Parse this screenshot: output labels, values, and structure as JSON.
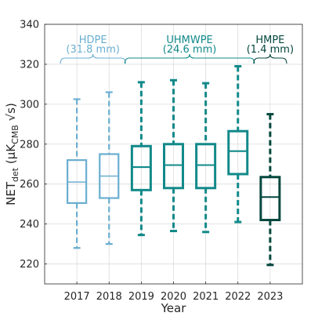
{
  "chart_data": {
    "type": "box",
    "xlabel": "Year",
    "ylabel": {
      "main": "NET",
      "sub1": "det",
      "paren_open": " (",
      "mu": "μK",
      "sub2": "CMB",
      "tail": " √s)"
    },
    "ylim": [
      210,
      340
    ],
    "yticks": [
      220,
      240,
      260,
      280,
      300,
      320,
      340
    ],
    "grid": true,
    "categories": [
      "2017",
      "2018",
      "2019",
      "2020",
      "2021",
      "2022",
      "2023"
    ],
    "boxes": [
      {
        "year": "2017",
        "min": 228,
        "q1": 250.5,
        "median": 261,
        "q3": 272,
        "max": 302.5,
        "color": "#6aaed0"
      },
      {
        "year": "2018",
        "min": 230,
        "q1": 253,
        "median": 264,
        "q3": 275,
        "max": 306,
        "color": "#6aaed0"
      },
      {
        "year": "2019",
        "min": 234.5,
        "q1": 257,
        "median": 268.5,
        "q3": 279,
        "max": 311,
        "color": "#12898a"
      },
      {
        "year": "2020",
        "min": 236.5,
        "q1": 258,
        "median": 269.5,
        "q3": 280,
        "max": 312,
        "color": "#12898a"
      },
      {
        "year": "2021",
        "min": 236,
        "q1": 258,
        "median": 269.5,
        "q3": 280,
        "max": 310.5,
        "color": "#12898a"
      },
      {
        "year": "2022",
        "min": 241,
        "q1": 265,
        "median": 276.5,
        "q3": 286.5,
        "max": 319,
        "color": "#12898a"
      },
      {
        "year": "2023",
        "min": 219.5,
        "q1": 242,
        "median": 253.5,
        "q3": 263.5,
        "max": 295,
        "color": "#04473d"
      }
    ],
    "groups": [
      {
        "name": "HDPE",
        "detail": "(31.8 mm)",
        "from": "2017",
        "to": "2018",
        "color": "#6aaed0"
      },
      {
        "name": "UHMWPE",
        "detail": "(24.6 mm)",
        "from": "2019",
        "to": "2022",
        "color": "#12898a"
      },
      {
        "name": "HMPE",
        "detail": "(1.4 mm)",
        "from": "2023",
        "to": "2023",
        "color": "#04473d"
      }
    ]
  }
}
